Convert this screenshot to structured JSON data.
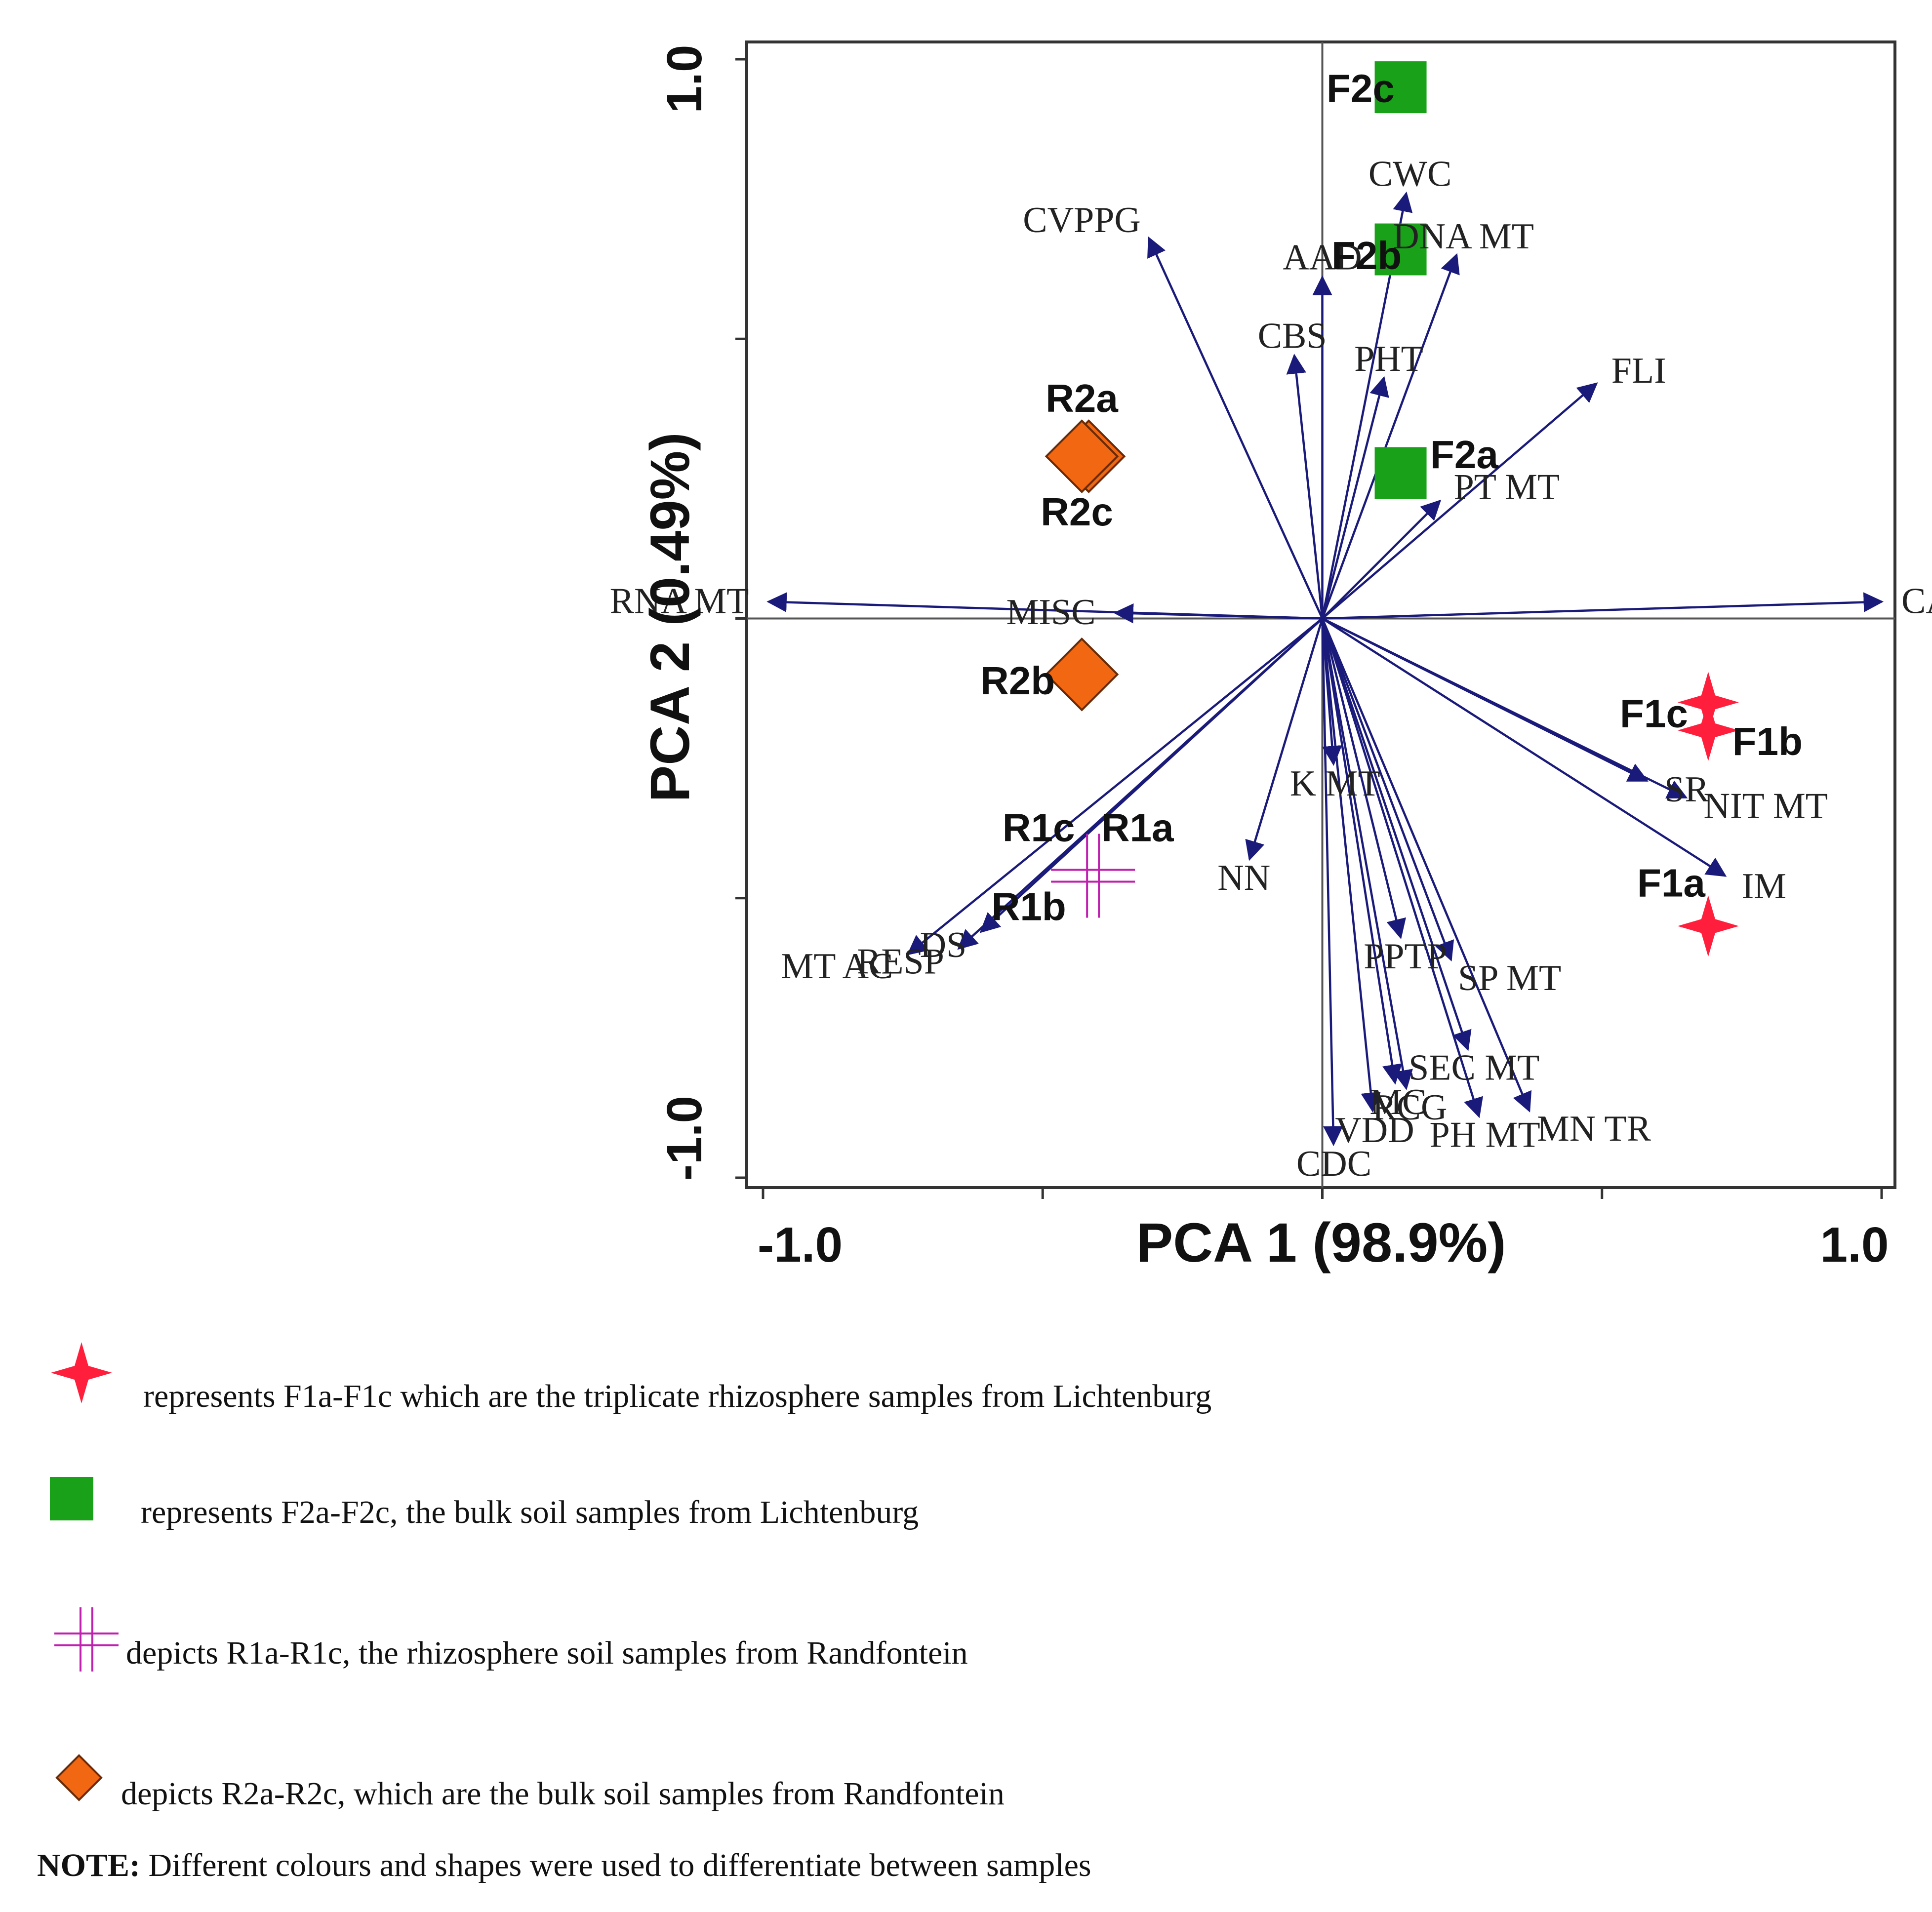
{
  "chart_data": {
    "type": "biplot",
    "xlabel": "PCA 1 (98.9%)",
    "ylabel": "PCA 2 (0.49%)",
    "xlim": [
      -1.0,
      1.0
    ],
    "ylim": [
      -1.0,
      1.0
    ],
    "x_tick_labels": [
      "-1.0",
      "1.0"
    ],
    "y_tick_labels": [
      "1.0",
      "-1.0"
    ],
    "colors": {
      "vector": "#1a1a7a",
      "rhizo_lichtenburg": "#ff1f3c",
      "bulk_lichtenburg": "#1aa11a",
      "rhizo_randfontein": "#c020b0",
      "bulk_randfontein": "#f26711"
    },
    "vectors": [
      {
        "label": "RNA MT",
        "x": -0.99,
        "y": 0.03
      },
      {
        "label": "CARB",
        "x": 1.0,
        "y": 0.03
      },
      {
        "label": "CVPPG",
        "x": -0.31,
        "y": 0.68
      },
      {
        "label": "AAD",
        "x": 0.0,
        "y": 0.61
      },
      {
        "label": "CWC",
        "x": 0.15,
        "y": 0.76
      },
      {
        "label": "DNA MT",
        "x": 0.24,
        "y": 0.65
      },
      {
        "label": "CBS",
        "x": -0.05,
        "y": 0.47
      },
      {
        "label": "PHT",
        "x": 0.11,
        "y": 0.43
      },
      {
        "label": "FLI",
        "x": 0.49,
        "y": 0.42
      },
      {
        "label": "PT MT",
        "x": 0.21,
        "y": 0.21
      },
      {
        "label": "MISC",
        "x": -0.37,
        "y": 0.01
      },
      {
        "label": "SR",
        "x": 0.58,
        "y": -0.29
      },
      {
        "label": "NIT MT",
        "x": 0.65,
        "y": -0.32
      },
      {
        "label": "IM",
        "x": 0.72,
        "y": -0.46
      },
      {
        "label": "K MT",
        "x": 0.02,
        "y": -0.26
      },
      {
        "label": "NN",
        "x": -0.13,
        "y": -0.43
      },
      {
        "label": "DS",
        "x": -0.61,
        "y": -0.56
      },
      {
        "label": "MT AC",
        "x": -0.74,
        "y": -0.6
      },
      {
        "label": "RESP",
        "x": -0.65,
        "y": -0.59
      },
      {
        "label": "PPTP",
        "x": 0.14,
        "y": -0.57
      },
      {
        "label": "SP MT",
        "x": 0.23,
        "y": -0.61
      },
      {
        "label": "SEC MT",
        "x": 0.26,
        "y": -0.77
      },
      {
        "label": "MC",
        "x": 0.13,
        "y": -0.83
      },
      {
        "label": "RCG",
        "x": 0.15,
        "y": -0.84
      },
      {
        "label": "MN TR",
        "x": 0.37,
        "y": -0.88
      },
      {
        "label": "PH MT",
        "x": 0.28,
        "y": -0.89
      },
      {
        "label": "VDD",
        "x": 0.09,
        "y": -0.88
      },
      {
        "label": "CDC",
        "x": 0.02,
        "y": -0.94
      }
    ],
    "samples": [
      {
        "label": "F2c",
        "group": "bulk_lichtenburg",
        "x": 0.14,
        "y": 0.95
      },
      {
        "label": "F2b",
        "group": "bulk_lichtenburg",
        "x": 0.14,
        "y": 0.66
      },
      {
        "label": "F2a",
        "group": "bulk_lichtenburg",
        "x": 0.14,
        "y": 0.26
      },
      {
        "label": "R2a",
        "group": "bulk_randfontein",
        "x": -0.43,
        "y": 0.29
      },
      {
        "label": "R2c",
        "group": "bulk_randfontein",
        "x": -0.43,
        "y": 0.29
      },
      {
        "label": "R2b",
        "group": "bulk_randfontein",
        "x": -0.43,
        "y": -0.1
      },
      {
        "label": "R1c",
        "group": "rhizo_randfontein",
        "x": -0.41,
        "y": -0.46
      },
      {
        "label": "R1a",
        "group": "rhizo_randfontein",
        "x": -0.41,
        "y": -0.46
      },
      {
        "label": "R1b",
        "group": "rhizo_randfontein",
        "x": -0.41,
        "y": -0.46
      },
      {
        "label": "F1c",
        "group": "rhizo_lichtenburg",
        "x": 0.69,
        "y": -0.15
      },
      {
        "label": "F1b",
        "group": "rhizo_lichtenburg",
        "x": 0.69,
        "y": -0.2
      },
      {
        "label": "F1a",
        "group": "rhizo_lichtenburg",
        "x": 0.69,
        "y": -0.55
      }
    ],
    "legend": [
      {
        "group": "rhizo_lichtenburg",
        "marker": "star",
        "text": "represents F1a-F1c which are the triplicate rhizosphere samples from Lichtenburg"
      },
      {
        "group": "bulk_lichtenburg",
        "marker": "square",
        "text": "represents F2a-F2c, the bulk soil samples from Lichtenburg"
      },
      {
        "group": "rhizo_randfontein",
        "marker": "plus",
        "text": "depicts R1a-R1c, the rhizosphere soil samples from Randfontein"
      },
      {
        "group": "bulk_randfontein",
        "marker": "diamond",
        "text": "depicts R2a-R2c, which are the bulk soil samples from Randfontein"
      }
    ]
  },
  "note": {
    "label": "NOTE:",
    "text": " Different colours and shapes were used to differentiate between samples"
  }
}
